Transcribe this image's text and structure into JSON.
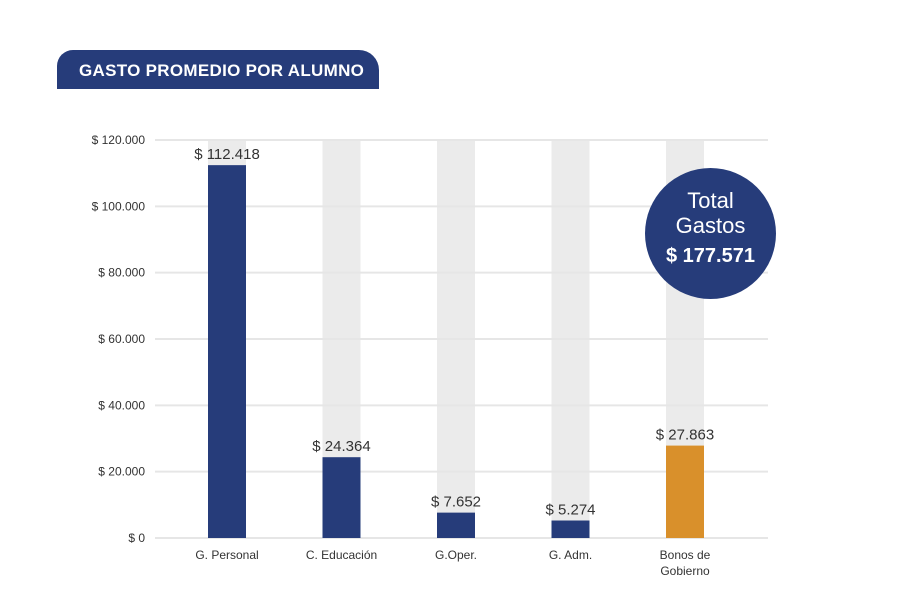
{
  "header": {
    "title": "GASTO PROMEDIO POR ALUMNO"
  },
  "badge": {
    "line1": "Total",
    "line2": "Gastos",
    "line3": "$ 177.571"
  },
  "colors": {
    "primary": "#263c7a",
    "highlight": "#d9902b",
    "track": "#ebebeb",
    "grid": "#e6e6e6"
  },
  "chart_data": {
    "type": "bar",
    "title": "GASTO PROMEDIO POR ALUMNO",
    "xlabel": "",
    "ylabel": "",
    "categories": [
      [
        "G. Personal"
      ],
      [
        "C. Educación"
      ],
      [
        "G.Oper."
      ],
      [
        "G. Adm."
      ],
      [
        "Bonos de",
        "Gobierno"
      ]
    ],
    "values": [
      112418,
      24364,
      7652,
      5274,
      27863
    ],
    "value_labels": [
      "$ 112.418",
      "$ 24.364",
      "$ 7.652",
      "$ 5.274",
      "$ 27.863"
    ],
    "bar_colors": [
      "#263c7a",
      "#263c7a",
      "#263c7a",
      "#263c7a",
      "#d9902b"
    ],
    "ylim": [
      0,
      120000
    ],
    "yticks": [
      0,
      20000,
      40000,
      60000,
      80000,
      100000,
      120000
    ],
    "ytick_labels": [
      "$ 0",
      "$ 20.000",
      "$ 40.000",
      "$ 60.000",
      "$ 80.000",
      "$ 100.000",
      "$ 120.000"
    ],
    "grid": true
  }
}
